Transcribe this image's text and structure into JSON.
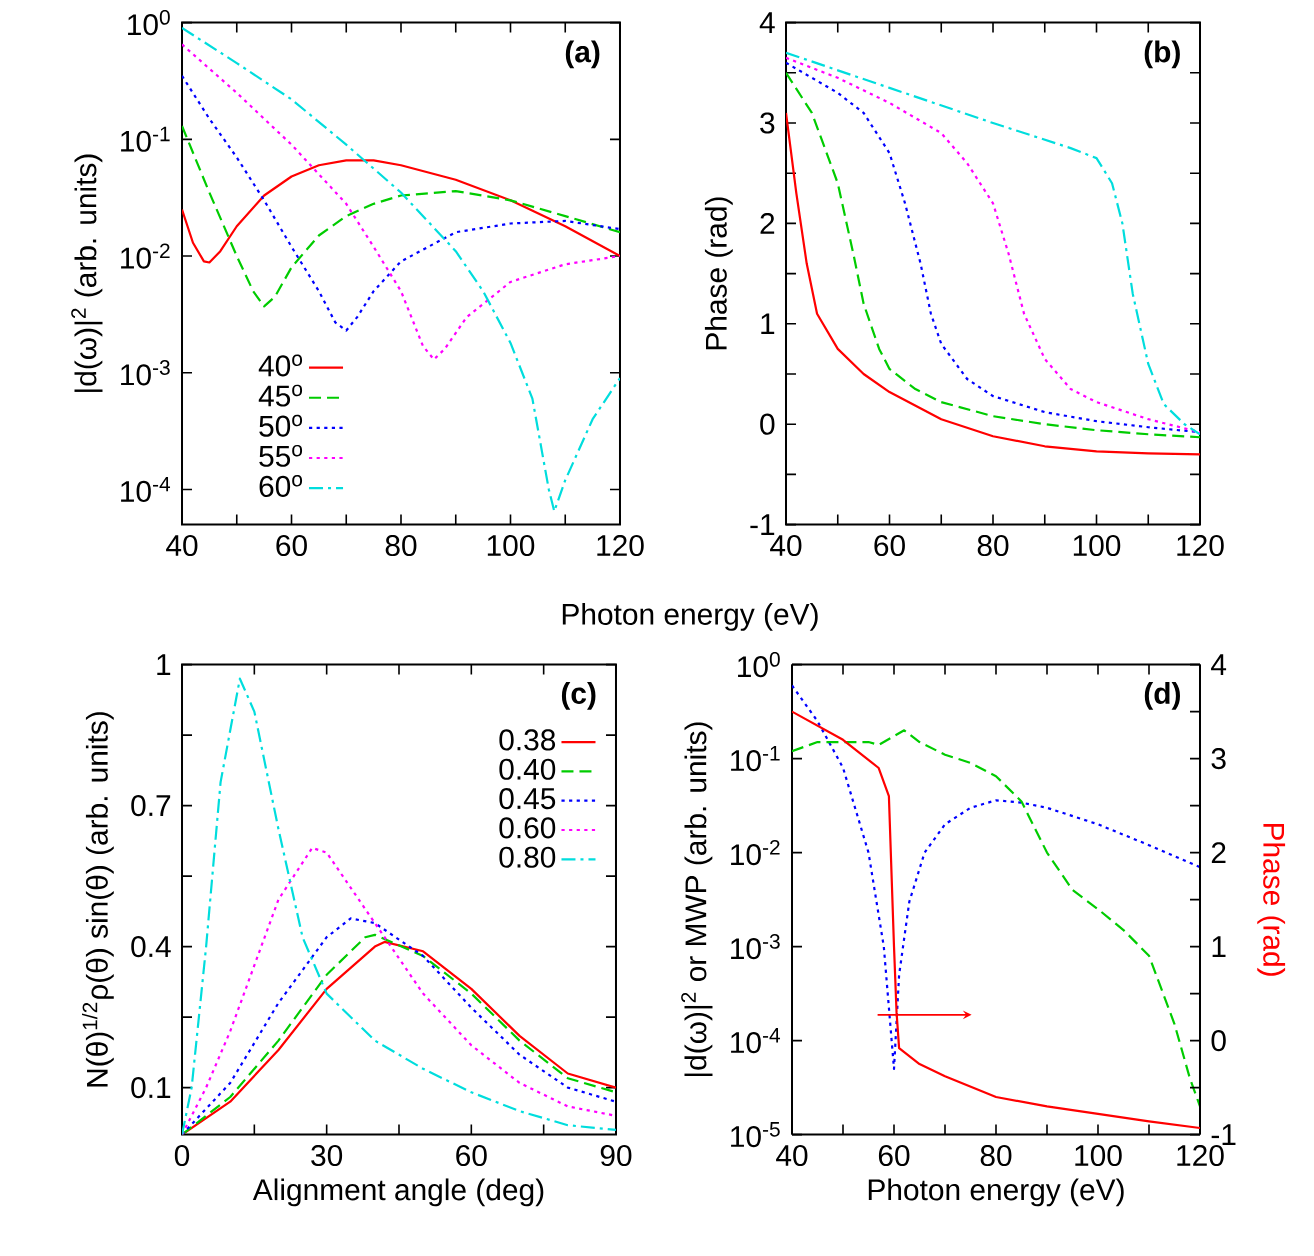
{
  "chart_data": [
    {
      "type": "line",
      "xlabel": "Photon energy (eV)",
      "ylabel": "|d(ω)|$^{2}$ (arb. units)",
      "annotations": [
        "(a)"
      ],
      "log": "y",
      "legend": "bottom left",
      "xlim": [
        40,
        120
      ],
      "xticks": [
        40,
        {
          "value": 50,
          "label": null
        },
        60,
        {
          "value": 70,
          "label": null
        },
        80,
        {
          "value": 90,
          "label": null
        },
        100,
        {
          "value": 110,
          "label": null
        },
        120
      ],
      "ylim": [
        5e-05,
        1
      ],
      "yticks": [
        {
          "value": 0.0001,
          "label": "10$^{-4}$"
        },
        {
          "value": 0.001,
          "label": "10$^{-3}$"
        },
        {
          "value": 0.01,
          "label": "10$^{-2}$"
        },
        {
          "value": 0.1,
          "label": "10$^{-1}$"
        },
        {
          "value": 1,
          "label": "10$^{0}$"
        }
      ],
      "series": [
        {
          "name": "40$^{o}$",
          "color": "#ff0000",
          "line_style": "solid",
          "x": [
            40,
            42,
            44,
            45,
            47,
            50,
            55,
            60,
            65,
            70,
            75,
            80,
            90,
            100,
            110,
            120
          ],
          "values": [
            0.025,
            0.013,
            0.009,
            0.0088,
            0.011,
            0.018,
            0.033,
            0.048,
            0.06,
            0.066,
            0.066,
            0.06,
            0.045,
            0.03,
            0.018,
            0.01
          ]
        },
        {
          "name": "45$^{o}$",
          "color": "#00cc00",
          "line_style": "dashed",
          "x": [
            40,
            45,
            50,
            53,
            55,
            57,
            60,
            65,
            70,
            75,
            80,
            90,
            100,
            110,
            120
          ],
          "values": [
            0.13,
            0.035,
            0.01,
            0.005,
            0.0037,
            0.0045,
            0.008,
            0.015,
            0.022,
            0.028,
            0.033,
            0.036,
            0.03,
            0.022,
            0.016
          ]
        },
        {
          "name": "50$^{o}$",
          "color": "#0000ff",
          "line_style": "dotted",
          "x": [
            40,
            45,
            50,
            55,
            60,
            65,
            68,
            70,
            72,
            75,
            80,
            90,
            100,
            110,
            120
          ],
          "values": [
            0.35,
            0.15,
            0.07,
            0.03,
            0.012,
            0.005,
            0.0027,
            0.0023,
            0.003,
            0.005,
            0.009,
            0.016,
            0.019,
            0.02,
            0.017
          ]
        },
        {
          "name": "55$^{o}$",
          "color": "#ff00ff",
          "line_style": "dotted",
          "x": [
            40,
            50,
            60,
            70,
            75,
            80,
            84,
            86,
            88,
            92,
            100,
            110,
            120
          ],
          "values": [
            0.65,
            0.25,
            0.09,
            0.028,
            0.012,
            0.005,
            0.0017,
            0.0013,
            0.0016,
            0.003,
            0.006,
            0.0085,
            0.01
          ]
        },
        {
          "name": "60$^{o}$",
          "color": "#00dddd",
          "line_style": "dashdot",
          "x": [
            40,
            50,
            60,
            70,
            80,
            90,
            95,
            100,
            104,
            107,
            108,
            110,
            115,
            120
          ],
          "values": [
            0.9,
            0.45,
            0.22,
            0.09,
            0.035,
            0.011,
            0.005,
            0.0018,
            0.0006,
            0.0001,
            6.5e-05,
            0.00012,
            0.0004,
            0.0009
          ]
        }
      ]
    },
    {
      "type": "line",
      "ylabel": "Phase (rad)",
      "annotations": [
        "(b)"
      ],
      "xlim": [
        40,
        120
      ],
      "xticks": [
        40,
        {
          "value": 50,
          "label": null
        },
        60,
        {
          "value": 70,
          "label": null
        },
        80,
        {
          "value": 90,
          "label": null
        },
        100,
        {
          "value": 110,
          "label": null
        },
        120
      ],
      "ylim": [
        -1,
        4
      ],
      "yticks": [
        -1,
        {
          "value": -0.5,
          "label": null
        },
        0,
        {
          "value": 0.5,
          "label": null
        },
        1,
        {
          "value": 1.5,
          "label": null
        },
        2,
        {
          "value": 2.5,
          "label": null
        },
        3,
        {
          "value": 3.5,
          "label": null
        },
        4
      ],
      "series": [
        {
          "color": "#ff0000",
          "line_style": "solid",
          "x": [
            40,
            42,
            44,
            46,
            50,
            55,
            60,
            70,
            80,
            90,
            100,
            110,
            120
          ],
          "values": [
            3.1,
            2.3,
            1.6,
            1.1,
            0.75,
            0.5,
            0.32,
            0.05,
            -0.12,
            -0.22,
            -0.27,
            -0.29,
            -0.3
          ]
        },
        {
          "color": "#00cc00",
          "line_style": "dashed",
          "x": [
            40,
            45,
            50,
            53,
            55,
            58,
            60,
            65,
            70,
            80,
            90,
            100,
            110,
            120
          ],
          "values": [
            3.5,
            3.1,
            2.4,
            1.7,
            1.2,
            0.75,
            0.55,
            0.35,
            0.22,
            0.08,
            0.0,
            -0.06,
            -0.1,
            -0.13
          ]
        },
        {
          "color": "#0000ff",
          "line_style": "dotted",
          "x": [
            40,
            50,
            55,
            60,
            63,
            66,
            68,
            70,
            75,
            80,
            90,
            100,
            110,
            120
          ],
          "values": [
            3.6,
            3.3,
            3.1,
            2.7,
            2.2,
            1.6,
            1.1,
            0.8,
            0.45,
            0.28,
            0.12,
            0.03,
            -0.03,
            -0.08
          ]
        },
        {
          "color": "#ff00ff",
          "line_style": "dotted",
          "x": [
            40,
            50,
            60,
            70,
            75,
            80,
            83,
            86,
            90,
            95,
            100,
            110,
            120
          ],
          "values": [
            3.65,
            3.45,
            3.2,
            2.9,
            2.6,
            2.2,
            1.7,
            1.1,
            0.65,
            0.35,
            0.22,
            0.05,
            -0.08
          ]
        },
        {
          "color": "#00dddd",
          "line_style": "dashdot",
          "x": [
            40,
            60,
            80,
            95,
            100,
            103,
            105,
            107,
            110,
            113,
            117,
            120
          ],
          "values": [
            3.7,
            3.35,
            3.0,
            2.75,
            2.65,
            2.4,
            2.0,
            1.3,
            0.6,
            0.2,
            0.0,
            -0.1
          ]
        }
      ]
    },
    {
      "type": "line",
      "xlabel": "Alignment angle (deg)",
      "ylabel": "N(θ)$^{1/2}$ρ(θ) sin(θ) (arb. units)",
      "annotations": [
        "(c)"
      ],
      "legend": "top right",
      "xlim": [
        0,
        90
      ],
      "xticks": [
        0,
        {
          "value": 15,
          "label": null
        },
        30,
        {
          "value": 45,
          "label": null
        },
        60,
        {
          "value": 75,
          "label": null
        },
        90
      ],
      "ylim": [
        0,
        1
      ],
      "yticks": [
        0.1,
        {
          "value": 0.25,
          "label": null
        },
        0.4,
        {
          "value": 0.55,
          "label": null
        },
        0.7,
        {
          "value": 0.85,
          "label": null
        },
        1
      ],
      "series": [
        {
          "name": "0.38",
          "color": "#ff0000",
          "line_style": "solid",
          "x": [
            0,
            10,
            20,
            30,
            40,
            42,
            50,
            60,
            70,
            80,
            90
          ],
          "values": [
            0.0,
            0.07,
            0.18,
            0.31,
            0.4,
            0.41,
            0.39,
            0.31,
            0.21,
            0.13,
            0.1
          ]
        },
        {
          "name": "0.40",
          "color": "#00cc00",
          "line_style": "dashed",
          "x": [
            0,
            10,
            20,
            30,
            38,
            40,
            50,
            60,
            70,
            80,
            90
          ],
          "values": [
            0.0,
            0.08,
            0.2,
            0.34,
            0.42,
            0.425,
            0.38,
            0.3,
            0.2,
            0.12,
            0.09
          ]
        },
        {
          "name": "0.45",
          "color": "#0000ff",
          "line_style": "dotted",
          "x": [
            0,
            10,
            20,
            30,
            35,
            40,
            50,
            60,
            70,
            80,
            90
          ],
          "values": [
            0.0,
            0.11,
            0.28,
            0.42,
            0.46,
            0.45,
            0.38,
            0.27,
            0.17,
            0.1,
            0.07
          ]
        },
        {
          "name": "0.60",
          "color": "#ff00ff",
          "line_style": "dotted",
          "x": [
            0,
            5,
            10,
            20,
            27,
            30,
            40,
            50,
            60,
            70,
            80,
            90
          ],
          "values": [
            0.0,
            0.1,
            0.22,
            0.5,
            0.61,
            0.6,
            0.45,
            0.3,
            0.19,
            0.11,
            0.06,
            0.04
          ]
        },
        {
          "name": "0.80",
          "color": "#00dddd",
          "line_style": "dashdot",
          "x": [
            0,
            2,
            5,
            8,
            12,
            15,
            20,
            25,
            30,
            40,
            50,
            60,
            70,
            80,
            90
          ],
          "values": [
            0.0,
            0.1,
            0.4,
            0.75,
            0.97,
            0.9,
            0.65,
            0.42,
            0.3,
            0.2,
            0.14,
            0.09,
            0.05,
            0.02,
            0.01
          ]
        }
      ]
    },
    {
      "type": "line",
      "xlabel": "Photon energy (eV)",
      "ylabel": "|d(ω)|$^{2}$ or MWP (arb. units)",
      "y2label": "Phase (rad)",
      "annotations": [
        "(d)"
      ],
      "log": "y",
      "xlim": [
        40,
        120
      ],
      "xticks": [
        40,
        {
          "value": 50,
          "label": null
        },
        60,
        {
          "value": 70,
          "label": null
        },
        80,
        {
          "value": 90,
          "label": null
        },
        100,
        {
          "value": 110,
          "label": null
        },
        120
      ],
      "ylim": [
        1e-05,
        1
      ],
      "yticks": [
        {
          "value": 1e-05,
          "label": "10$^{-5}$"
        },
        {
          "value": 0.0001,
          "label": "10$^{-4}$"
        },
        {
          "value": 0.001,
          "label": "10$^{-3}$"
        },
        {
          "value": 0.01,
          "label": "10$^{-2}$"
        },
        {
          "value": 0.1,
          "label": "10$^{-1}$"
        },
        {
          "value": 1,
          "label": "10$^{0}$"
        }
      ],
      "y2lim": [
        -1,
        4
      ],
      "y2ticks": [
        -1,
        {
          "value": -0.5,
          "label": null
        },
        0,
        {
          "value": 0.5,
          "label": null
        },
        1,
        {
          "value": 1.5,
          "label": null
        },
        2,
        {
          "value": 2.5,
          "label": null
        },
        3,
        {
          "value": 3.5,
          "label": null
        },
        4
      ],
      "series": [
        {
          "color": "#0000ff",
          "line_style": "dotted",
          "x": [
            40,
            45,
            50,
            55,
            58,
            60,
            61,
            63,
            66,
            70,
            75,
            80,
            85,
            90,
            100,
            110,
            120
          ],
          "values": [
            0.6,
            0.25,
            0.08,
            0.01,
            0.001,
            5e-05,
            0.0005,
            0.003,
            0.01,
            0.02,
            0.03,
            0.036,
            0.034,
            0.03,
            0.02,
            0.012,
            0.007
          ]
        },
        {
          "color": "#00cc00",
          "line_style": "dashed",
          "x": [
            40,
            45,
            50,
            55,
            57,
            62,
            65,
            70,
            75,
            80,
            85,
            90,
            95,
            100,
            105,
            110,
            115,
            118,
            120
          ],
          "values": [
            0.12,
            0.15,
            0.15,
            0.15,
            0.14,
            0.2,
            0.15,
            0.11,
            0.09,
            0.065,
            0.035,
            0.01,
            0.004,
            0.0025,
            0.0015,
            0.0008,
            0.00015,
            4e-05,
            2e-05
          ]
        },
        {
          "color": "#ff0000",
          "line_style": "solid",
          "axis": "y2",
          "x": [
            40,
            50,
            57,
            59,
            60,
            60.5,
            61,
            65,
            70,
            80,
            90,
            100,
            110,
            120
          ],
          "values": [
            3.5,
            3.2,
            2.9,
            2.6,
            1.0,
            0.3,
            -0.08,
            -0.25,
            -0.38,
            -0.6,
            -0.7,
            -0.78,
            -0.86,
            -0.93
          ]
        }
      ]
    }
  ]
}
